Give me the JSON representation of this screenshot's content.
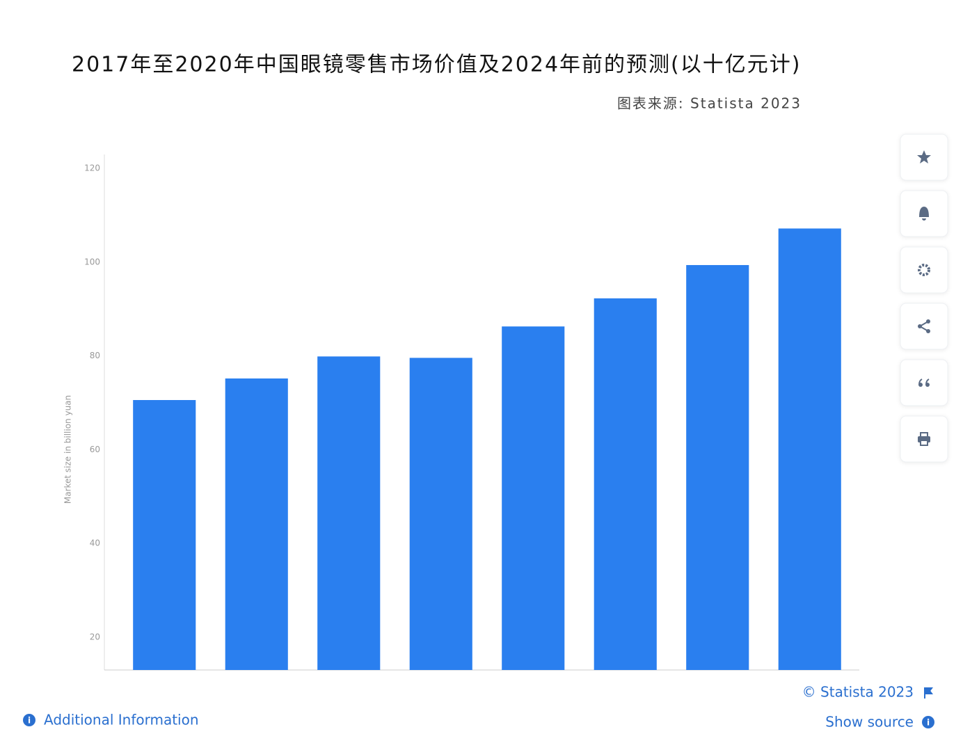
{
  "chart_data": {
    "type": "bar",
    "title": "2017年至2020年中国眼镜零售市场价值及2024年前的预测(以十亿元计)",
    "subtitle": "图表来源: Statista 2023",
    "y_label": "Market size in billion yuan",
    "categories": [
      null,
      null,
      null,
      null,
      null,
      null,
      null,
      null
    ],
    "values": [
      70.6,
      75.2,
      79.9,
      79.6,
      86.3,
      92.3,
      99.4,
      107.2
    ],
    "color": "#2a7fef",
    "ylim": [
      13,
      123
    ],
    "yticks": [
      20,
      40,
      60,
      80,
      100,
      120
    ],
    "grid": false,
    "copyright": "© Statista 2023",
    "additional_info": "Additional Information",
    "show_source": "Show source"
  }
}
